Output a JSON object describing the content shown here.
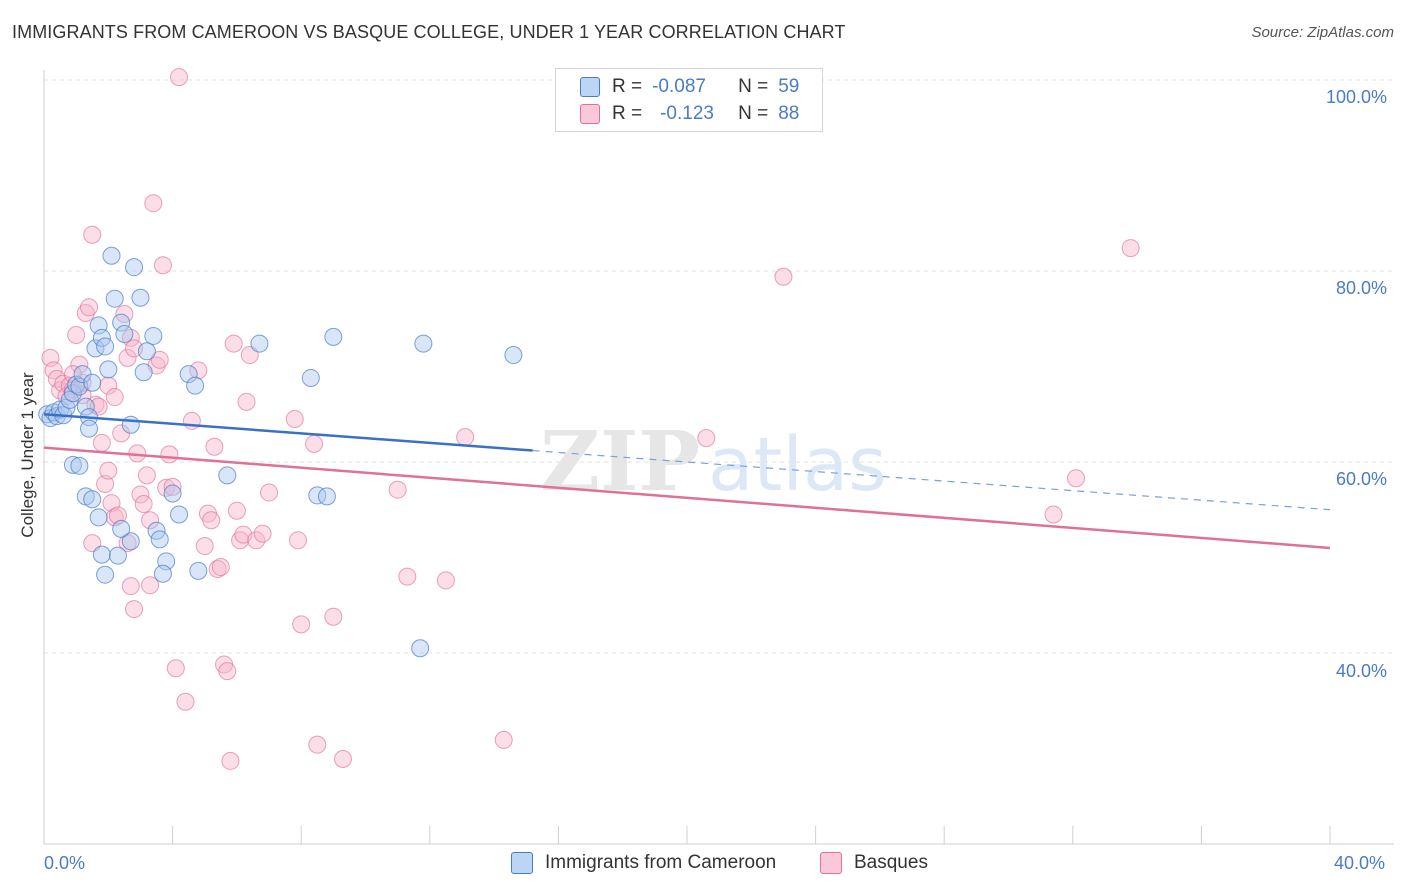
{
  "title": "IMMIGRANTS FROM CAMEROON VS BASQUE COLLEGE, UNDER 1 YEAR CORRELATION CHART",
  "source": "Source: ZipAtlas.com",
  "legend": {
    "r1_label": "R =",
    "r1_value": "-0.087",
    "n1_label": "N =",
    "n1_value": "59",
    "r2_label": "R =",
    "r2_value": "-0.123",
    "n2_label": "N =",
    "n2_value": "88"
  },
  "colors": {
    "blue": "#4a7bc8",
    "blue_fill": "#a9c8f0",
    "pink": "#e07098",
    "pink_fill": "#f6b6cb"
  },
  "chart_data": {
    "type": "scatter",
    "title": "IMMIGRANTS FROM CAMEROON VS BASQUE COLLEGE, UNDER 1 YEAR CORRELATION CHART",
    "ylabel": "College, Under 1 year",
    "xlabel": "",
    "xlim": [
      0,
      40
    ],
    "ylim": [
      20,
      102
    ],
    "x_tick_labels": [
      "0.0%",
      "40.0%"
    ],
    "y_tick_labels": [
      "100.0%",
      "80.0%",
      "60.0%",
      "40.0%"
    ],
    "y_ticks": [
      100,
      80,
      60,
      40
    ],
    "grid": true,
    "legend_position": "top-center",
    "series": [
      {
        "name": "Immigrants from Cameroon",
        "color": "#4a7bc8",
        "trend": {
          "x0": 0,
          "y0": 65.0,
          "x1": 15.2,
          "y1": 61.2,
          "dash_x1": 40,
          "dash_y1": 55.0
        },
        "points": [
          [
            0.1,
            65.0
          ],
          [
            0.2,
            64.6
          ],
          [
            0.3,
            65.2
          ],
          [
            0.4,
            64.8
          ],
          [
            0.5,
            65.5
          ],
          [
            0.6,
            64.9
          ],
          [
            0.7,
            65.7
          ],
          [
            0.8,
            66.5
          ],
          [
            0.9,
            67.2
          ],
          [
            1.0,
            68.1
          ],
          [
            1.1,
            67.9
          ],
          [
            1.2,
            69.2
          ],
          [
            1.3,
            65.8
          ],
          [
            1.4,
            64.7
          ],
          [
            1.5,
            68.3
          ],
          [
            1.6,
            71.9
          ],
          [
            1.7,
            74.3
          ],
          [
            1.8,
            73.0
          ],
          [
            1.9,
            72.1
          ],
          [
            2.0,
            69.7
          ],
          [
            2.1,
            81.6
          ],
          [
            2.2,
            77.1
          ],
          [
            2.4,
            74.6
          ],
          [
            2.5,
            73.4
          ],
          [
            2.7,
            63.9
          ],
          [
            2.8,
            80.4
          ],
          [
            3.0,
            77.2
          ],
          [
            3.1,
            69.4
          ],
          [
            3.2,
            71.6
          ],
          [
            3.4,
            73.2
          ],
          [
            0.9,
            59.7
          ],
          [
            1.1,
            59.6
          ],
          [
            1.3,
            56.4
          ],
          [
            1.5,
            56.1
          ],
          [
            1.7,
            54.2
          ],
          [
            1.8,
            50.3
          ],
          [
            1.9,
            48.2
          ],
          [
            2.3,
            50.2
          ],
          [
            2.7,
            51.7
          ],
          [
            3.5,
            52.8
          ],
          [
            3.6,
            51.9
          ],
          [
            3.8,
            49.6
          ],
          [
            4.0,
            56.7
          ],
          [
            4.2,
            54.5
          ],
          [
            4.5,
            69.2
          ],
          [
            4.7,
            68.0
          ],
          [
            4.8,
            48.6
          ],
          [
            5.7,
            58.6
          ],
          [
            6.7,
            72.4
          ],
          [
            8.3,
            68.8
          ],
          [
            8.5,
            56.5
          ],
          [
            8.8,
            56.4
          ],
          [
            9.0,
            73.1
          ],
          [
            11.7,
            40.5
          ],
          [
            11.8,
            72.4
          ],
          [
            14.6,
            71.2
          ],
          [
            3.7,
            48.3
          ],
          [
            2.4,
            53.0
          ],
          [
            1.4,
            63.5
          ]
        ]
      },
      {
        "name": "Basques",
        "color": "#e07098",
        "trend": {
          "x0": 0,
          "y0": 61.5,
          "x1": 40,
          "y1": 51.0
        },
        "points": [
          [
            0.2,
            70.9
          ],
          [
            0.3,
            69.6
          ],
          [
            0.4,
            68.7
          ],
          [
            0.5,
            67.5
          ],
          [
            0.6,
            68.2
          ],
          [
            0.7,
            66.9
          ],
          [
            0.8,
            68.0
          ],
          [
            0.9,
            67.6
          ],
          [
            1.0,
            73.3
          ],
          [
            1.1,
            70.2
          ],
          [
            1.2,
            67.0
          ],
          [
            1.3,
            75.6
          ],
          [
            1.4,
            76.2
          ],
          [
            1.5,
            83.8
          ],
          [
            1.6,
            66.0
          ],
          [
            1.7,
            65.8
          ],
          [
            1.8,
            62.0
          ],
          [
            1.9,
            57.7
          ],
          [
            2.0,
            59.1
          ],
          [
            2.1,
            55.7
          ],
          [
            2.2,
            54.2
          ],
          [
            2.3,
            54.4
          ],
          [
            2.4,
            63.0
          ],
          [
            2.5,
            75.5
          ],
          [
            2.6,
            70.9
          ],
          [
            2.7,
            73.0
          ],
          [
            2.8,
            71.9
          ],
          [
            2.9,
            60.9
          ],
          [
            3.0,
            56.6
          ],
          [
            3.1,
            55.6
          ],
          [
            3.2,
            58.6
          ],
          [
            3.3,
            53.9
          ],
          [
            3.4,
            87.1
          ],
          [
            3.5,
            70.1
          ],
          [
            3.6,
            70.7
          ],
          [
            3.7,
            80.6
          ],
          [
            3.8,
            57.3
          ],
          [
            3.9,
            60.8
          ],
          [
            4.0,
            57.4
          ],
          [
            4.1,
            38.4
          ],
          [
            4.2,
            100.3
          ],
          [
            4.4,
            34.9
          ],
          [
            4.6,
            64.3
          ],
          [
            4.8,
            69.6
          ],
          [
            5.0,
            51.2
          ],
          [
            5.1,
            54.6
          ],
          [
            5.2,
            53.9
          ],
          [
            5.3,
            61.6
          ],
          [
            5.4,
            48.8
          ],
          [
            5.5,
            49.0
          ],
          [
            5.6,
            38.8
          ],
          [
            5.7,
            38.1
          ],
          [
            5.8,
            28.7
          ],
          [
            5.9,
            72.4
          ],
          [
            6.0,
            54.9
          ],
          [
            6.1,
            51.8
          ],
          [
            6.2,
            52.4
          ],
          [
            6.3,
            66.3
          ],
          [
            6.4,
            71.2
          ],
          [
            6.6,
            51.8
          ],
          [
            6.8,
            52.5
          ],
          [
            7.0,
            56.8
          ],
          [
            7.8,
            64.5
          ],
          [
            7.9,
            51.8
          ],
          [
            8.0,
            43.0
          ],
          [
            8.4,
            61.9
          ],
          [
            8.5,
            30.4
          ],
          [
            9.0,
            43.8
          ],
          [
            9.3,
            28.9
          ],
          [
            11.0,
            57.1
          ],
          [
            11.3,
            48.0
          ],
          [
            12.5,
            47.6
          ],
          [
            13.1,
            62.6
          ],
          [
            14.3,
            30.9
          ],
          [
            20.6,
            62.5
          ],
          [
            23.0,
            79.4
          ],
          [
            31.4,
            54.5
          ],
          [
            32.1,
            58.3
          ],
          [
            33.8,
            82.4
          ],
          [
            1.2,
            68.3
          ],
          [
            0.9,
            69.2
          ],
          [
            2.0,
            68.0
          ],
          [
            2.6,
            51.5
          ],
          [
            2.7,
            47.0
          ],
          [
            2.8,
            44.6
          ],
          [
            3.3,
            47.1
          ],
          [
            1.5,
            51.5
          ],
          [
            2.2,
            66.8
          ]
        ]
      }
    ]
  },
  "bottom_legend": {
    "series1": "Immigrants from Cameroon",
    "series2": "Basques"
  },
  "axis": {
    "x_left": "0.0%",
    "x_right": "40.0%",
    "y_100": "100.0%",
    "y_80": "80.0%",
    "y_60": "60.0%",
    "y_40": "40.0%"
  },
  "watermark": "ZIPatlas"
}
